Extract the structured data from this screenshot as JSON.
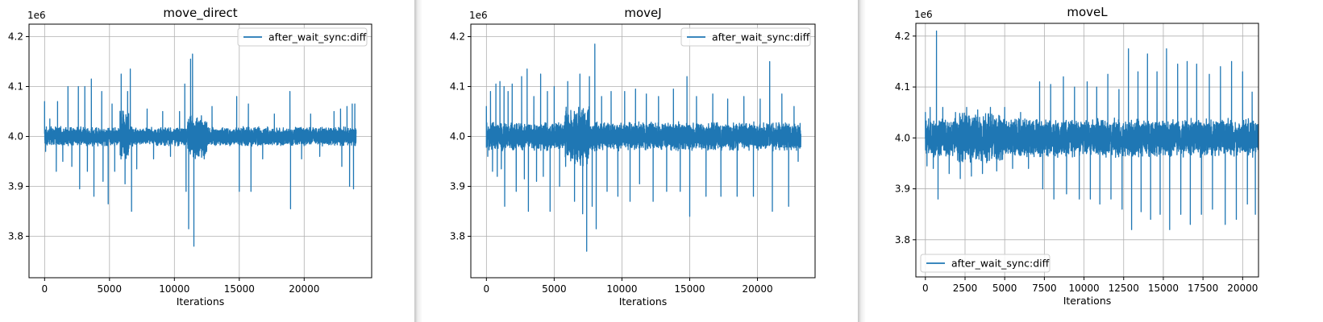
{
  "colors": {
    "line": "#1f77b4",
    "grid": "#b0b0b0",
    "legend_border": "#cccccc"
  },
  "chart_data": [
    {
      "type": "line",
      "title": "move_direct",
      "xlabel": "Iterations",
      "ylabel": "",
      "y_offset_label": "1e6",
      "grid": true,
      "legend_position": "top-right",
      "xlim": [
        -1200,
        25200
      ],
      "ylim": [
        3717000,
        4225000
      ],
      "x_ticks": [
        0,
        5000,
        10000,
        15000,
        20000
      ],
      "x_tick_labels": [
        "0",
        "5000",
        "10000",
        "15000",
        "20000"
      ],
      "y_ticks": [
        3800000,
        3900000,
        4000000,
        4100000,
        4200000
      ],
      "y_tick_labels": [
        "3.8",
        "3.9",
        "4.0",
        "4.1",
        "4.2"
      ],
      "series": [
        {
          "name": "after_wait_sync:diff",
          "n_points": 24000,
          "baseline": 4000000,
          "noise_band": 20000,
          "bursts": [
            {
              "from": 5800,
              "to": 6500,
              "band": 60000
            },
            {
              "from": 11000,
              "to": 12500,
              "band": 45000
            }
          ],
          "spikes": [
            {
              "x": 0,
              "y": 4070000
            },
            {
              "x": 80,
              "y": 3970000
            },
            {
              "x": 400,
              "y": 4035000
            },
            {
              "x": 900,
              "y": 3930000
            },
            {
              "x": 1000,
              "y": 4070000
            },
            {
              "x": 1400,
              "y": 3950000
            },
            {
              "x": 1800,
              "y": 4100000
            },
            {
              "x": 2100,
              "y": 3940000
            },
            {
              "x": 2600,
              "y": 4100000
            },
            {
              "x": 2700,
              "y": 3895000
            },
            {
              "x": 3100,
              "y": 4100000
            },
            {
              "x": 3300,
              "y": 3930000
            },
            {
              "x": 3600,
              "y": 4115000
            },
            {
              "x": 3800,
              "y": 3880000
            },
            {
              "x": 4400,
              "y": 4090000
            },
            {
              "x": 4500,
              "y": 3910000
            },
            {
              "x": 4900,
              "y": 3865000
            },
            {
              "x": 5200,
              "y": 4065000
            },
            {
              "x": 5400,
              "y": 3930000
            },
            {
              "x": 5900,
              "y": 4125000
            },
            {
              "x": 6200,
              "y": 3905000
            },
            {
              "x": 6400,
              "y": 4090000
            },
            {
              "x": 6600,
              "y": 4135000
            },
            {
              "x": 6700,
              "y": 3850000
            },
            {
              "x": 7100,
              "y": 3935000
            },
            {
              "x": 7900,
              "y": 4055000
            },
            {
              "x": 8400,
              "y": 3955000
            },
            {
              "x": 9100,
              "y": 4050000
            },
            {
              "x": 9700,
              "y": 3960000
            },
            {
              "x": 10400,
              "y": 4050000
            },
            {
              "x": 10800,
              "y": 4105000
            },
            {
              "x": 10900,
              "y": 3890000
            },
            {
              "x": 11100,
              "y": 3815000
            },
            {
              "x": 11250,
              "y": 4155000
            },
            {
              "x": 11400,
              "y": 4165000
            },
            {
              "x": 11500,
              "y": 3780000
            },
            {
              "x": 12300,
              "y": 3955000
            },
            {
              "x": 12900,
              "y": 4060000
            },
            {
              "x": 14800,
              "y": 4080000
            },
            {
              "x": 15000,
              "y": 3890000
            },
            {
              "x": 15700,
              "y": 4065000
            },
            {
              "x": 15900,
              "y": 3890000
            },
            {
              "x": 16800,
              "y": 3955000
            },
            {
              "x": 17700,
              "y": 4045000
            },
            {
              "x": 18900,
              "y": 4090000
            },
            {
              "x": 18950,
              "y": 3855000
            },
            {
              "x": 19800,
              "y": 3955000
            },
            {
              "x": 20500,
              "y": 4045000
            },
            {
              "x": 21200,
              "y": 3960000
            },
            {
              "x": 22300,
              "y": 4050000
            },
            {
              "x": 22800,
              "y": 4055000
            },
            {
              "x": 22900,
              "y": 3940000
            },
            {
              "x": 23300,
              "y": 4060000
            },
            {
              "x": 23500,
              "y": 3900000
            },
            {
              "x": 23700,
              "y": 4065000
            },
            {
              "x": 23800,
              "y": 3895000
            },
            {
              "x": 23900,
              "y": 4065000
            }
          ]
        }
      ]
    },
    {
      "type": "line",
      "title": "moveJ",
      "xlabel": "Iterations",
      "ylabel": "",
      "y_offset_label": "1e6",
      "grid": true,
      "legend_position": "top-right",
      "xlim": [
        -1150,
        24250
      ],
      "ylim": [
        3717000,
        4225000
      ],
      "x_ticks": [
        0,
        5000,
        10000,
        15000,
        20000
      ],
      "x_tick_labels": [
        "0",
        "5000",
        "10000",
        "15000",
        "20000"
      ],
      "y_ticks": [
        3800000,
        3900000,
        4000000,
        4100000,
        4200000
      ],
      "y_tick_labels": [
        "3.8",
        "3.9",
        "4.0",
        "4.1",
        "4.2"
      ],
      "series": [
        {
          "name": "after_wait_sync:diff",
          "n_points": 23200,
          "baseline": 4000000,
          "noise_band": 30000,
          "bursts": [
            {
              "from": 5800,
              "to": 7600,
              "band": 65000
            }
          ],
          "spikes": [
            {
              "x": 0,
              "y": 4060000
            },
            {
              "x": 100,
              "y": 3960000
            },
            {
              "x": 300,
              "y": 4090000
            },
            {
              "x": 450,
              "y": 3930000
            },
            {
              "x": 700,
              "y": 4105000
            },
            {
              "x": 800,
              "y": 3920000
            },
            {
              "x": 1000,
              "y": 4110000
            },
            {
              "x": 1100,
              "y": 3935000
            },
            {
              "x": 1300,
              "y": 4100000
            },
            {
              "x": 1350,
              "y": 3860000
            },
            {
              "x": 1600,
              "y": 4090000
            },
            {
              "x": 1900,
              "y": 4105000
            },
            {
              "x": 2200,
              "y": 3890000
            },
            {
              "x": 2600,
              "y": 4120000
            },
            {
              "x": 2800,
              "y": 3915000
            },
            {
              "x": 3000,
              "y": 4135000
            },
            {
              "x": 3100,
              "y": 3850000
            },
            {
              "x": 3500,
              "y": 4080000
            },
            {
              "x": 3700,
              "y": 3910000
            },
            {
              "x": 4000,
              "y": 4125000
            },
            {
              "x": 4200,
              "y": 3920000
            },
            {
              "x": 4500,
              "y": 4090000
            },
            {
              "x": 4700,
              "y": 3850000
            },
            {
              "x": 5000,
              "y": 4100000
            },
            {
              "x": 5400,
              "y": 3900000
            },
            {
              "x": 6000,
              "y": 4110000
            },
            {
              "x": 6500,
              "y": 3870000
            },
            {
              "x": 6900,
              "y": 4125000
            },
            {
              "x": 7100,
              "y": 3845000
            },
            {
              "x": 7400,
              "y": 3770000
            },
            {
              "x": 7600,
              "y": 4120000
            },
            {
              "x": 7800,
              "y": 3860000
            },
            {
              "x": 8000,
              "y": 4185000
            },
            {
              "x": 8100,
              "y": 3815000
            },
            {
              "x": 8500,
              "y": 4080000
            },
            {
              "x": 8900,
              "y": 3890000
            },
            {
              "x": 9200,
              "y": 4090000
            },
            {
              "x": 9700,
              "y": 3880000
            },
            {
              "x": 10200,
              "y": 4090000
            },
            {
              "x": 10600,
              "y": 3870000
            },
            {
              "x": 11000,
              "y": 4095000
            },
            {
              "x": 11300,
              "y": 3905000
            },
            {
              "x": 11800,
              "y": 4085000
            },
            {
              "x": 12300,
              "y": 3870000
            },
            {
              "x": 12700,
              "y": 4080000
            },
            {
              "x": 13300,
              "y": 3890000
            },
            {
              "x": 13800,
              "y": 4095000
            },
            {
              "x": 14300,
              "y": 3890000
            },
            {
              "x": 14800,
              "y": 4120000
            },
            {
              "x": 15000,
              "y": 3840000
            },
            {
              "x": 15500,
              "y": 4080000
            },
            {
              "x": 16200,
              "y": 3880000
            },
            {
              "x": 16700,
              "y": 4085000
            },
            {
              "x": 17300,
              "y": 3880000
            },
            {
              "x": 17800,
              "y": 4075000
            },
            {
              "x": 18500,
              "y": 3880000
            },
            {
              "x": 19000,
              "y": 4080000
            },
            {
              "x": 19700,
              "y": 3880000
            },
            {
              "x": 20200,
              "y": 4075000
            },
            {
              "x": 20900,
              "y": 4150000
            },
            {
              "x": 21100,
              "y": 3850000
            },
            {
              "x": 21800,
              "y": 4085000
            },
            {
              "x": 22300,
              "y": 3860000
            },
            {
              "x": 22700,
              "y": 4060000
            },
            {
              "x": 23000,
              "y": 3950000
            }
          ]
        }
      ]
    },
    {
      "type": "line",
      "title": "moveL",
      "xlabel": "Iterations",
      "ylabel": "",
      "y_offset_label": "1e6",
      "grid": true,
      "legend_position": "bottom-left",
      "xlim": [
        -600,
        21000
      ],
      "ylim": [
        3727000,
        4225000
      ],
      "x_ticks": [
        0,
        2500,
        5000,
        7500,
        10000,
        12500,
        15000,
        17500,
        20000
      ],
      "x_tick_labels": [
        "0",
        "2500",
        "5000",
        "7500",
        "10000",
        "12500",
        "15000",
        "17500",
        "20000"
      ],
      "y_ticks": [
        3800000,
        3900000,
        4000000,
        4100000,
        4200000
      ],
      "y_tick_labels": [
        "3.8",
        "3.9",
        "4.0",
        "4.1",
        "4.2"
      ],
      "series": [
        {
          "name": "after_wait_sync:diff",
          "n_points": 21000,
          "baseline": 4000000,
          "noise_band": 40000,
          "bursts": [
            {
              "from": 2000,
              "to": 5000,
              "band": 55000
            }
          ],
          "spikes": [
            {
              "x": 0,
              "y": 4050000
            },
            {
              "x": 100,
              "y": 3945000
            },
            {
              "x": 300,
              "y": 4060000
            },
            {
              "x": 500,
              "y": 3940000
            },
            {
              "x": 700,
              "y": 4210000
            },
            {
              "x": 800,
              "y": 3880000
            },
            {
              "x": 1100,
              "y": 4060000
            },
            {
              "x": 1500,
              "y": 3930000
            },
            {
              "x": 1900,
              "y": 4050000
            },
            {
              "x": 2200,
              "y": 3920000
            },
            {
              "x": 2600,
              "y": 4060000
            },
            {
              "x": 2900,
              "y": 3925000
            },
            {
              "x": 3300,
              "y": 4055000
            },
            {
              "x": 3600,
              "y": 3930000
            },
            {
              "x": 4100,
              "y": 4060000
            },
            {
              "x": 4500,
              "y": 3935000
            },
            {
              "x": 5000,
              "y": 4060000
            },
            {
              "x": 5500,
              "y": 3940000
            },
            {
              "x": 6000,
              "y": 4050000
            },
            {
              "x": 6500,
              "y": 3940000
            },
            {
              "x": 7200,
              "y": 4110000
            },
            {
              "x": 7400,
              "y": 3900000
            },
            {
              "x": 7900,
              "y": 4105000
            },
            {
              "x": 8100,
              "y": 3880000
            },
            {
              "x": 8700,
              "y": 4120000
            },
            {
              "x": 8900,
              "y": 3890000
            },
            {
              "x": 9400,
              "y": 4100000
            },
            {
              "x": 9700,
              "y": 3880000
            },
            {
              "x": 10200,
              "y": 4110000
            },
            {
              "x": 10400,
              "y": 3880000
            },
            {
              "x": 10800,
              "y": 4100000
            },
            {
              "x": 11000,
              "y": 3870000
            },
            {
              "x": 11500,
              "y": 4125000
            },
            {
              "x": 11700,
              "y": 3880000
            },
            {
              "x": 12200,
              "y": 4095000
            },
            {
              "x": 12400,
              "y": 3860000
            },
            {
              "x": 12800,
              "y": 4175000
            },
            {
              "x": 13000,
              "y": 3820000
            },
            {
              "x": 13400,
              "y": 4130000
            },
            {
              "x": 13600,
              "y": 3855000
            },
            {
              "x": 14000,
              "y": 4165000
            },
            {
              "x": 14200,
              "y": 3840000
            },
            {
              "x": 14600,
              "y": 4130000
            },
            {
              "x": 14800,
              "y": 3850000
            },
            {
              "x": 15200,
              "y": 4175000
            },
            {
              "x": 15400,
              "y": 3820000
            },
            {
              "x": 15900,
              "y": 4145000
            },
            {
              "x": 16100,
              "y": 3850000
            },
            {
              "x": 16500,
              "y": 4150000
            },
            {
              "x": 16700,
              "y": 3830000
            },
            {
              "x": 17100,
              "y": 4145000
            },
            {
              "x": 17400,
              "y": 3850000
            },
            {
              "x": 17900,
              "y": 4125000
            },
            {
              "x": 18100,
              "y": 3860000
            },
            {
              "x": 18600,
              "y": 4140000
            },
            {
              "x": 18900,
              "y": 3830000
            },
            {
              "x": 19300,
              "y": 4150000
            },
            {
              "x": 19600,
              "y": 3840000
            },
            {
              "x": 20000,
              "y": 4130000
            },
            {
              "x": 20300,
              "y": 3870000
            },
            {
              "x": 20600,
              "y": 4090000
            },
            {
              "x": 20800,
              "y": 3850000
            }
          ]
        }
      ]
    }
  ]
}
